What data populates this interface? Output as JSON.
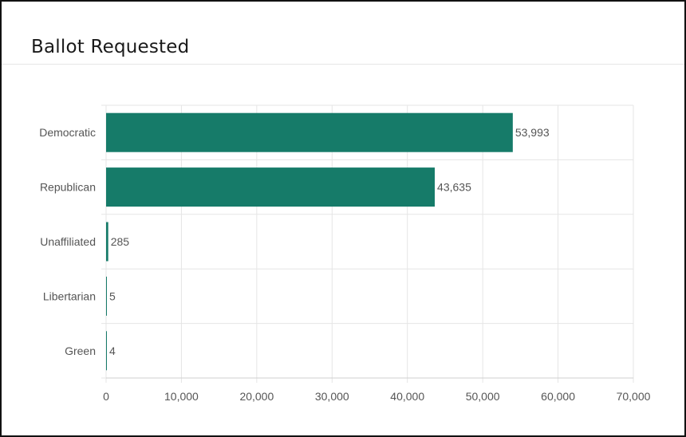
{
  "page": {
    "title": "Ballot Requested"
  },
  "chart_data": {
    "type": "bar",
    "orientation": "horizontal",
    "title": "Ballot Requested",
    "categories": [
      "Democratic",
      "Republican",
      "Unaffiliated",
      "Libertarian",
      "Green"
    ],
    "values": [
      53993,
      43635,
      285,
      5,
      4
    ],
    "value_labels": [
      "53,993",
      "43,635",
      "285",
      "5",
      "4"
    ],
    "xlim": [
      0,
      70000
    ],
    "xticks": [
      0,
      10000,
      20000,
      30000,
      40000,
      50000,
      60000,
      70000
    ],
    "xtick_labels": [
      "0",
      "10,000",
      "20,000",
      "30,000",
      "40,000",
      "50,000",
      "60,000",
      "70,000"
    ],
    "grid": true,
    "bar_color": "#167b69",
    "grid_color": "#e5e5e5"
  }
}
